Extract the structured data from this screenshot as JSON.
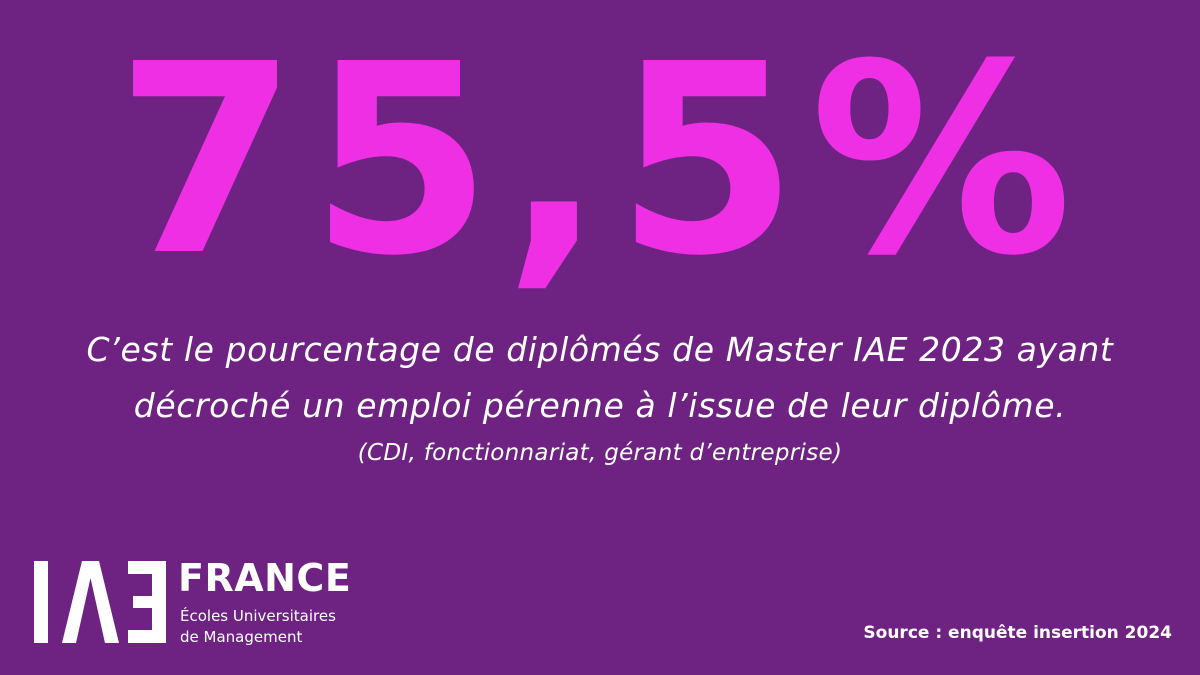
{
  "colors": {
    "background": "#6E2383",
    "accent": "#EE2FE4",
    "text": "#FFFFFF"
  },
  "stat": {
    "value": "75,5%"
  },
  "caption": {
    "line1": "C’est le pourcentage de diplômés de Master IAE 2023 ayant",
    "line2": "décroché un emploi pérenne à l’issue de leur diplôme.",
    "note": "(CDI, fonctionnariat, gérant d’entreprise)"
  },
  "logo": {
    "mark": "IAE",
    "word": "FRANCE",
    "subtitle_line1": "Écoles Universitaires",
    "subtitle_line2": "de Management"
  },
  "source": {
    "text": "Source : enquête insertion 2024"
  }
}
